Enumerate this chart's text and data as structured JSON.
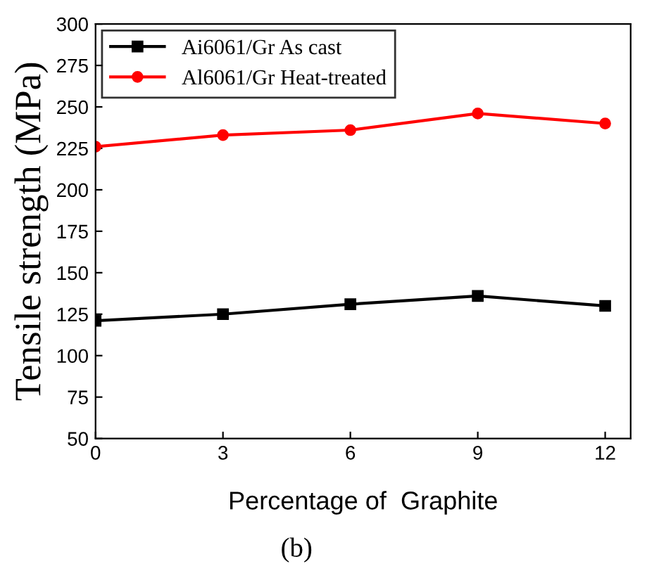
{
  "chart_data": {
    "type": "line",
    "xlabel": "Percentage of  Graphite",
    "ylabel": "Tensile strength (MPa)",
    "x": [
      0,
      3,
      6,
      9,
      12
    ],
    "series": [
      {
        "name": "Ai6061/Gr As cast",
        "color": "#000000",
        "marker": "square",
        "values": [
          121,
          125,
          131,
          136,
          130
        ]
      },
      {
        "name": "Al6061/Gr Heat-treated",
        "color": "#ff0000",
        "marker": "circle",
        "values": [
          226,
          233,
          236,
          246,
          240
        ]
      }
    ],
    "xlim": [
      0,
      12.6
    ],
    "xticks": [
      0,
      3,
      6,
      9,
      12
    ],
    "ylim": [
      50,
      300
    ],
    "yticks": [
      50,
      75,
      100,
      125,
      150,
      175,
      200,
      225,
      250,
      275,
      300
    ],
    "grid": false,
    "legend": "top left",
    "line_style": "solid",
    "annotations": [
      "(b)"
    ]
  }
}
